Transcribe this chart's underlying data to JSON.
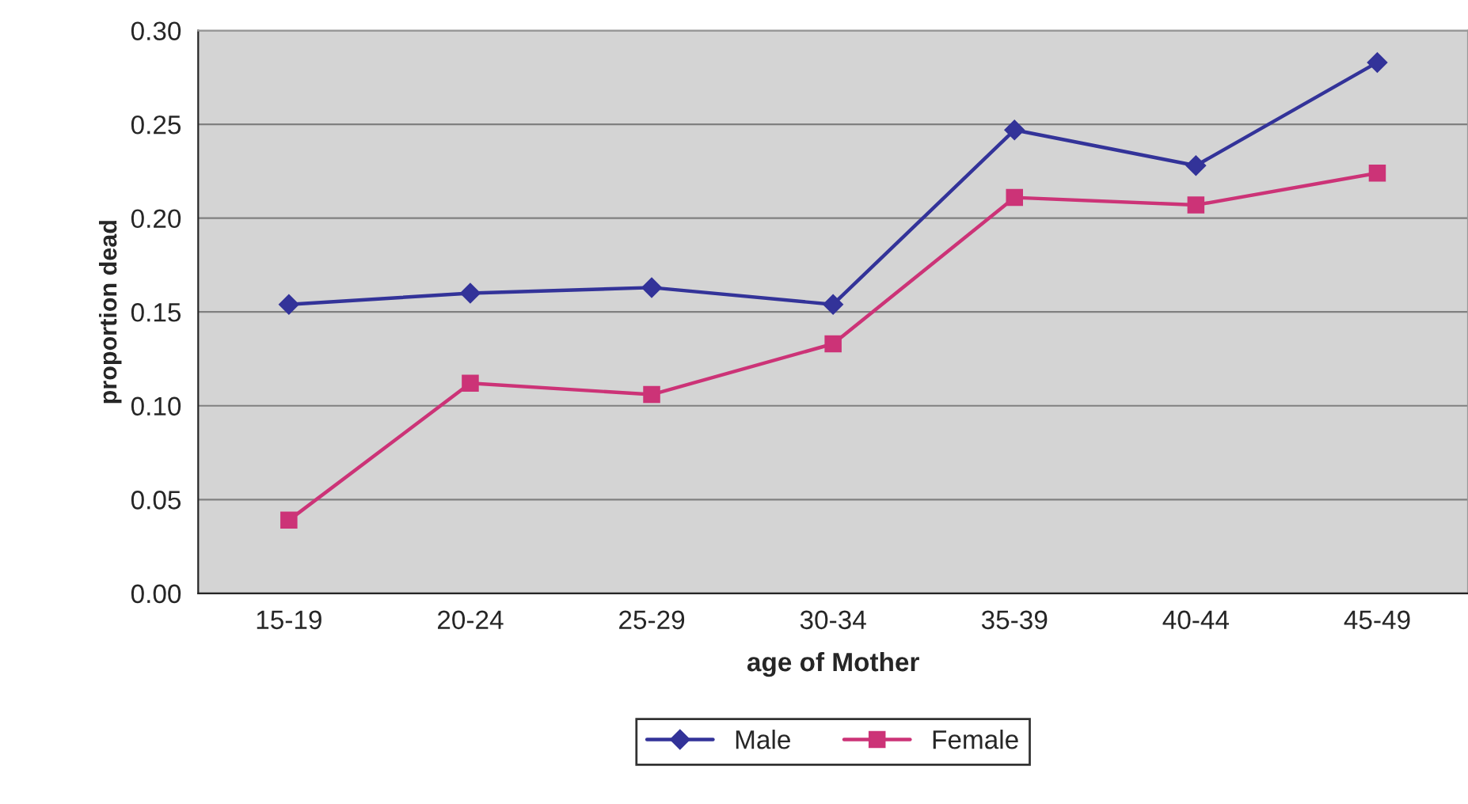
{
  "chart_data": {
    "type": "line",
    "xlabel": "age of Mother",
    "ylabel": "proportion dead",
    "categories": [
      "15-19",
      "20-24",
      "25-29",
      "30-34",
      "35-39",
      "40-44",
      "45-49"
    ],
    "series": [
      {
        "name": "Male",
        "color": "#333399",
        "marker": "diamond",
        "values": [
          0.154,
          0.16,
          0.163,
          0.154,
          0.247,
          0.228,
          0.283
        ]
      },
      {
        "name": "Female",
        "color": "#cc3377",
        "marker": "square",
        "values": [
          0.039,
          0.112,
          0.106,
          0.133,
          0.211,
          0.207,
          0.224
        ]
      }
    ],
    "ylim": [
      0,
      0.3
    ],
    "yticks": [
      {
        "value": 0,
        "label": "0.00"
      },
      {
        "value": 0.05,
        "label": "0.05"
      },
      {
        "value": 0.1,
        "label": "0.10"
      },
      {
        "value": 0.15,
        "label": "0.15"
      },
      {
        "value": 0.2,
        "label": "0.20"
      },
      {
        "value": 0.25,
        "label": "0.25"
      },
      {
        "value": 0.3,
        "label": "0.30"
      }
    ],
    "grid": "y",
    "legend": "bottom",
    "line_style": "solid"
  }
}
